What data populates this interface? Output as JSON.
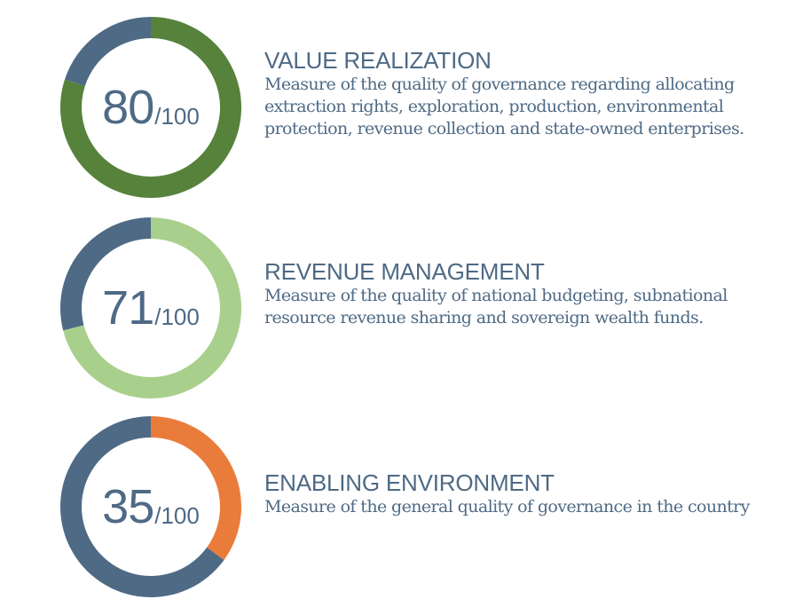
{
  "colors": {
    "remainder": "#4e6a85",
    "text": "#4e6a85"
  },
  "chart_data": [
    {
      "type": "pie",
      "variant": "donut",
      "values": [
        80,
        20
      ],
      "max": 100,
      "colors": [
        "#56823b",
        "#4e6a85"
      ],
      "score": "80",
      "total": "/100",
      "title": "VALUE REALIZATION",
      "description": "Measure of the quality of governance regarding allocating extraction rights, exploration, production, environmental protection, revenue collection and state-owned enterprises."
    },
    {
      "type": "pie",
      "variant": "donut",
      "values": [
        71,
        29
      ],
      "max": 100,
      "colors": [
        "#a9cf8c",
        "#4e6a85"
      ],
      "score": "71",
      "total": "/100",
      "title": "REVENUE MANAGEMENT",
      "description": "Measure of the quality of national budgeting, subnational resource revenue sharing and sovereign wealth funds."
    },
    {
      "type": "pie",
      "variant": "donut",
      "values": [
        35,
        65
      ],
      "max": 100,
      "colors": [
        "#ea7c3b",
        "#4e6a85"
      ],
      "score": "35",
      "total": "/100",
      "title": "ENABLING ENVIRONMENT",
      "description": "Measure of the general quality of governance in the country"
    }
  ]
}
